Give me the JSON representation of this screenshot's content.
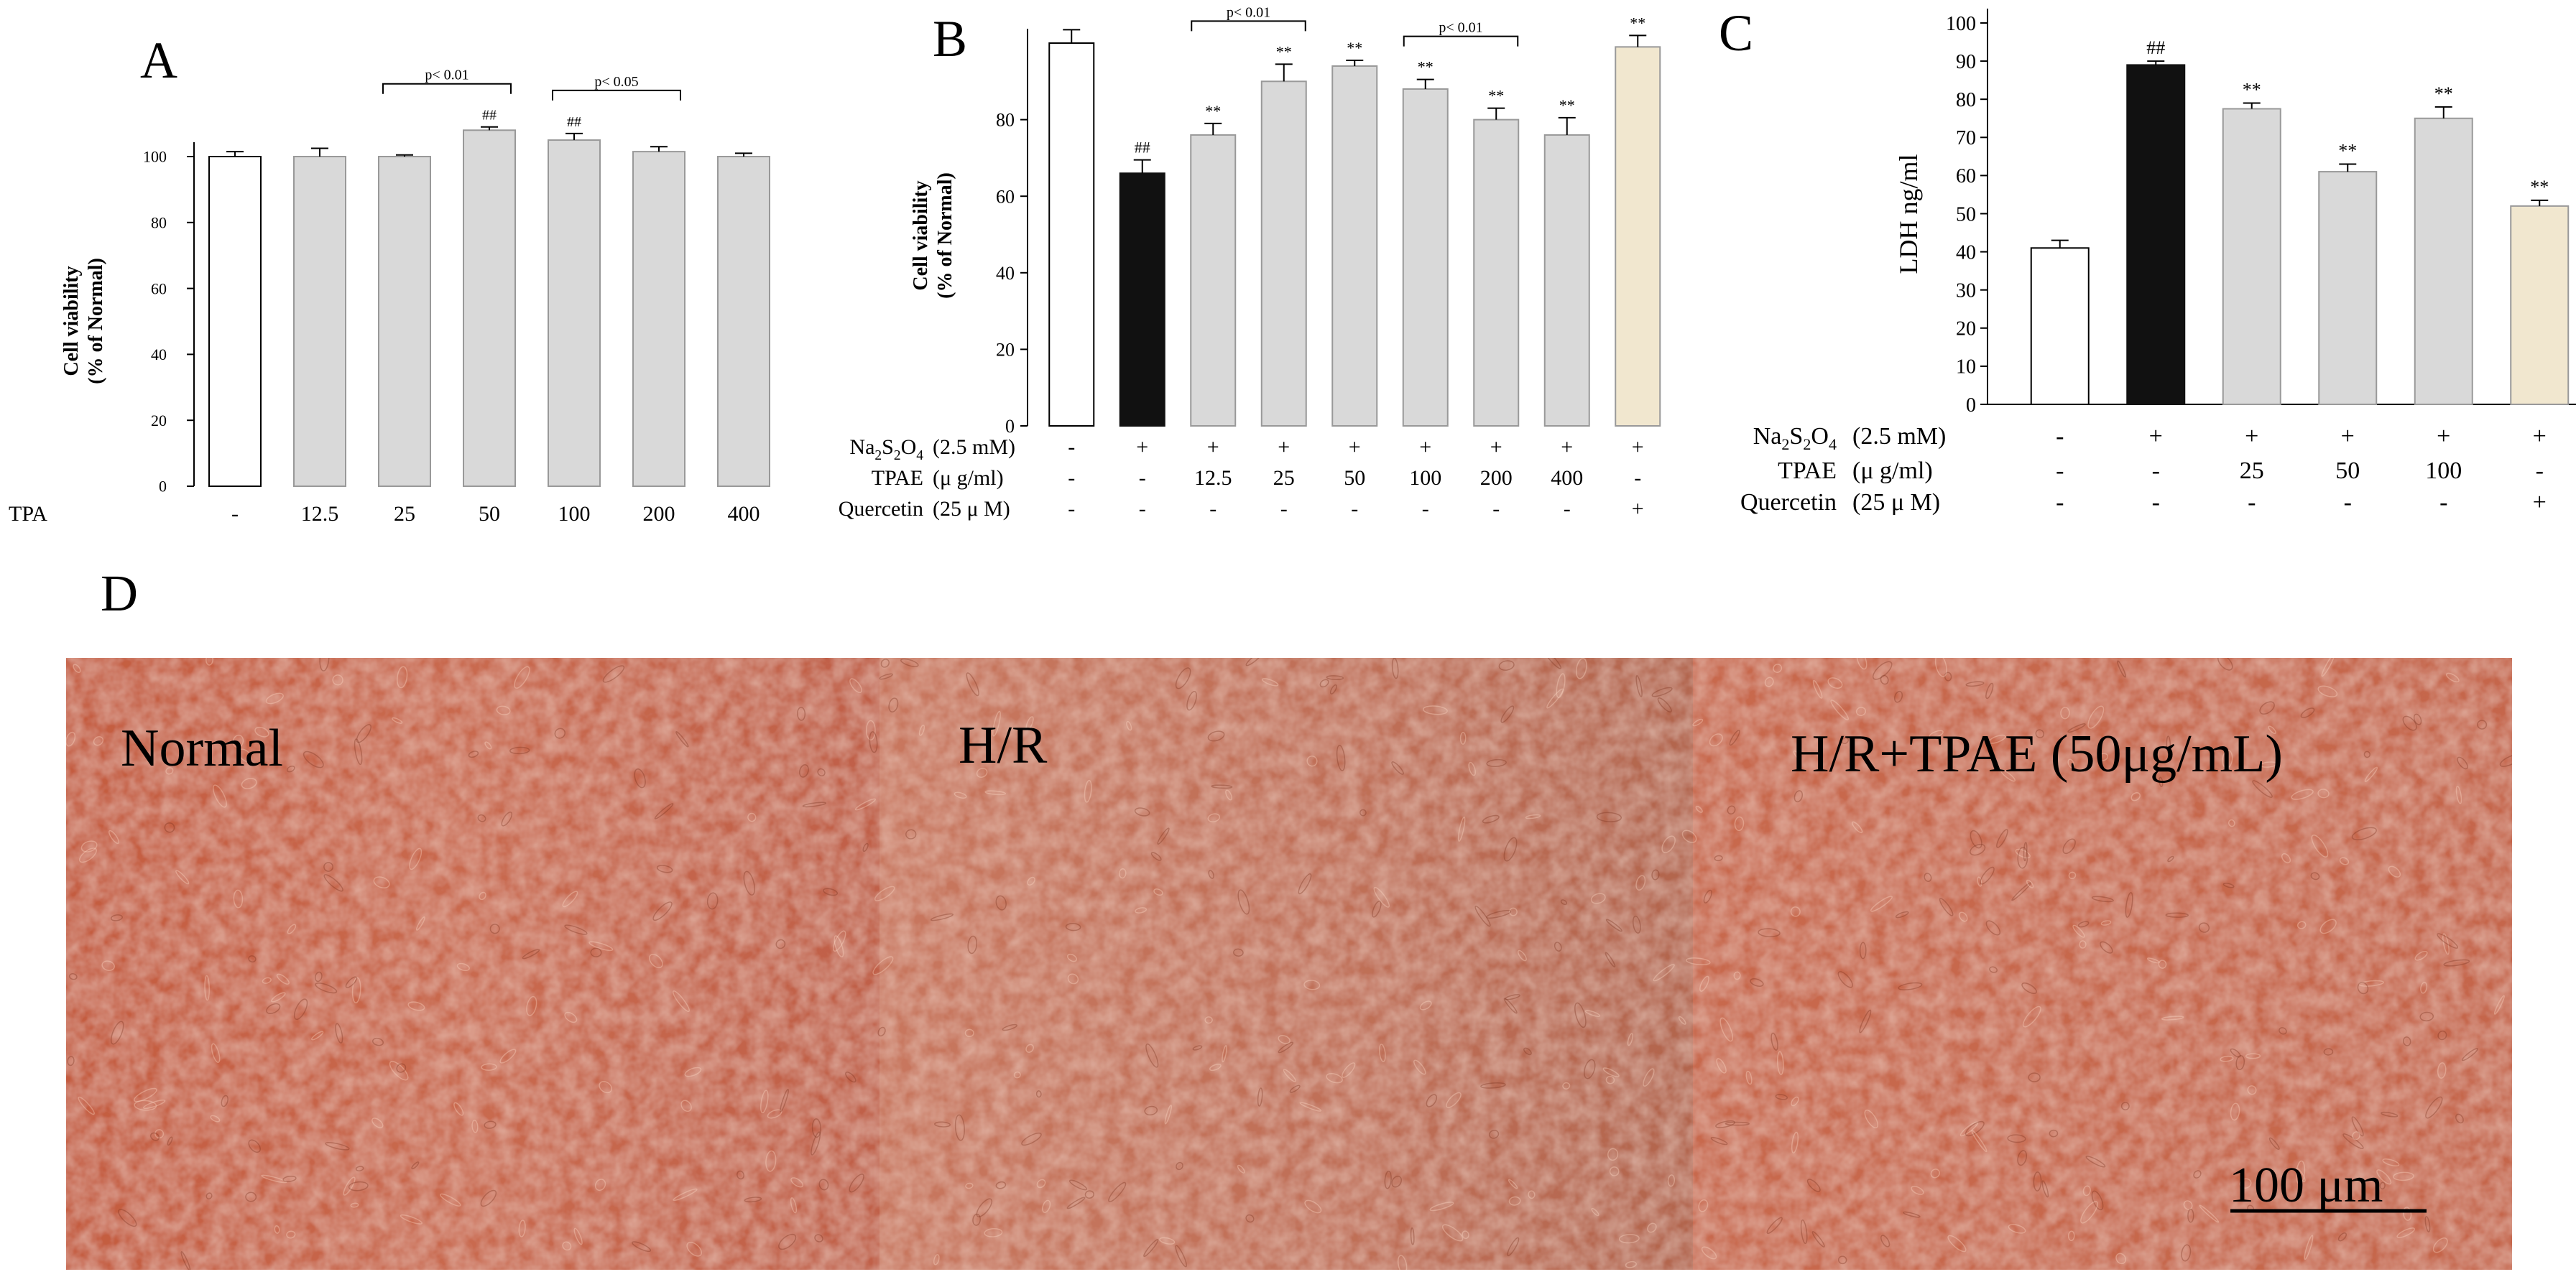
{
  "colors": {
    "white": "#ffffff",
    "black": "#111111",
    "gray": "#d9d9d9",
    "beige": "#f1e7cf",
    "micro_base": "#c86548",
    "micro_mid": "#c17158",
    "micro_right": "#c96a4f"
  },
  "chart_data": [
    {
      "panel": "A",
      "type": "bar",
      "ylabel_line1": "Cell viability",
      "ylabel_line2": "(% of Normal)",
      "ylim": [
        0,
        100
      ],
      "yticks": [
        "0",
        "20",
        "40",
        "60",
        "80",
        "100"
      ],
      "row_label": "TPA",
      "categories": [
        "-",
        "12.5",
        "25",
        "50",
        "100",
        "200",
        "400"
      ],
      "values": [
        100,
        100,
        100,
        108,
        105,
        101.5,
        100
      ],
      "errors": [
        1.5,
        2.5,
        0.5,
        1,
        2,
        1.5,
        1
      ],
      "colors": [
        "white",
        "gray",
        "gray",
        "gray",
        "gray",
        "gray",
        "gray"
      ],
      "markers": [
        "",
        "",
        "",
        "##",
        "##",
        "",
        ""
      ],
      "brackets": [
        {
          "from": 2,
          "to": 3,
          "label": "p< 0.01"
        },
        {
          "from": 4,
          "to": 5,
          "label": "p< 0.05"
        }
      ]
    },
    {
      "panel": "B",
      "type": "bar",
      "ylabel_line1": "Cell viability",
      "ylabel_line2": "(% of Normal)",
      "ylim": [
        0,
        100
      ],
      "yticks": [
        "0",
        "20",
        "40",
        "60",
        "80"
      ],
      "rows": [
        {
          "name_main": "Na",
          "name_parts": [
            "2",
            "S",
            "2",
            "O",
            "4"
          ],
          "unit": "(2.5 mM)",
          "values": [
            "-",
            "+",
            "+",
            "+",
            "+",
            "+",
            "+",
            "+",
            "+"
          ]
        },
        {
          "name": "TPAE",
          "unit": "(μ g/ml)",
          "values": [
            "-",
            "-",
            "12.5",
            "25",
            "50",
            "100",
            "200",
            "400",
            "-"
          ]
        },
        {
          "name": "Quercetin",
          "unit": "(25 μ M)",
          "values": [
            "-",
            "-",
            "-",
            "-",
            "-",
            "-",
            "-",
            "-",
            "+"
          ]
        }
      ],
      "values": [
        100,
        66,
        76,
        90,
        94,
        88,
        80,
        76,
        99
      ],
      "errors": [
        3.5,
        3.5,
        3,
        4.5,
        1.5,
        2.5,
        3,
        4.5,
        3
      ],
      "colors": [
        "white",
        "black",
        "gray",
        "gray",
        "gray",
        "gray",
        "gray",
        "gray",
        "beige"
      ],
      "markers": [
        "",
        "##",
        "**",
        "**",
        "**",
        "**",
        "**",
        "**",
        "**"
      ],
      "brackets": [
        {
          "from": 2,
          "to": 3,
          "label": "p< 0.01"
        },
        {
          "from": 5,
          "to": 6,
          "label": "p< 0.01"
        }
      ]
    },
    {
      "panel": "C",
      "type": "bar",
      "ylabel": "LDH ng/ml",
      "ylim": [
        0,
        100
      ],
      "yticks": [
        "0",
        "10",
        "20",
        "30",
        "40",
        "50",
        "60",
        "70",
        "80",
        "90",
        "100"
      ],
      "rows": [
        {
          "name_main": "Na",
          "name_parts": [
            "2",
            "S",
            "2",
            "O",
            "4"
          ],
          "unit": "(2.5 mM)",
          "values": [
            "-",
            "+",
            "+",
            "+",
            "+",
            "+"
          ]
        },
        {
          "name": "TPAE",
          "unit": "(μ g/ml)",
          "values": [
            "-",
            "-",
            "25",
            "50",
            "100",
            "-"
          ]
        },
        {
          "name": "Quercetin",
          "unit": "(25 μ M)",
          "values": [
            "-",
            "-",
            "-",
            "-",
            "-",
            "+"
          ]
        }
      ],
      "values": [
        41,
        89,
        77.5,
        61,
        75,
        52
      ],
      "errors": [
        2,
        1,
        1.5,
        2,
        3,
        1.5
      ],
      "colors": [
        "white",
        "black",
        "gray",
        "gray",
        "gray",
        "beige"
      ],
      "markers": [
        "",
        "##",
        "**",
        "**",
        "**",
        "**"
      ]
    }
  ],
  "panel_d": {
    "letter": "D",
    "labels": [
      "Normal",
      "H/R",
      "H/R+TPAE (50μg/mL)"
    ],
    "scale_bar": "100 μm"
  }
}
